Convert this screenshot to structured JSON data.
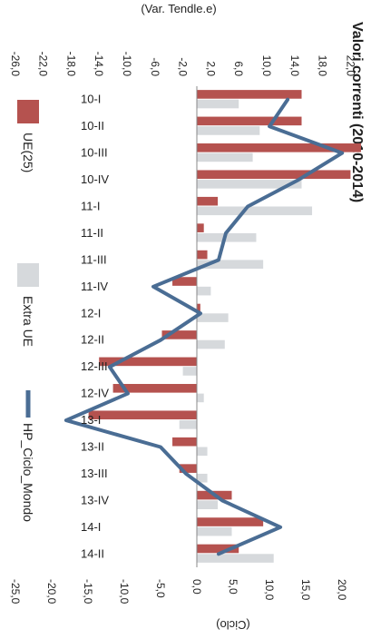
{
  "chart_data": {
    "type": "bar",
    "title": "Valori correnti (2010-2014)",
    "ylabel_left": "(Var. Tendle.e)",
    "ylabel_right": "(Ciclo)",
    "categories": [
      "10-I",
      "10-II",
      "10-III",
      "10-IV",
      "11-I",
      "11-II",
      "11-III",
      "11-IV",
      "12-I",
      "12-II",
      "12-III",
      "12-IV",
      "13-I",
      "13-II",
      "13-III",
      "13-IV",
      "14-I",
      "14-II"
    ],
    "series": [
      {
        "name": "UE(25)",
        "kind": "bar",
        "color": "#b5524f",
        "values": [
          15.0,
          15.0,
          23.5,
          22.0,
          3.0,
          1.0,
          1.5,
          -3.5,
          0.5,
          -5.0,
          -14.0,
          -12.0,
          -15.5,
          -3.5,
          -2.5,
          5.0,
          9.5,
          6.0
        ]
      },
      {
        "name": "Extra UE",
        "kind": "bar",
        "color": "#d6d9dc",
        "values": [
          6.0,
          9.0,
          8.0,
          15.0,
          16.5,
          8.5,
          9.5,
          2.0,
          4.5,
          4.0,
          -2.0,
          1.0,
          -2.5,
          1.5,
          1.5,
          3.0,
          5.0,
          11.0
        ]
      },
      {
        "name": "HP_Ciclo_Mondo",
        "kind": "line",
        "color": "#4a6d94",
        "values": [
          12.5,
          10.0,
          20.0,
          14.0,
          7.0,
          4.0,
          3.0,
          -6.0,
          0.5,
          -5.0,
          -12.0,
          -9.5,
          -18.0,
          -5.0,
          -1.5,
          3.5,
          11.5,
          3.0
        ]
      }
    ],
    "left_axis": {
      "ticks": [
        "26,0",
        "22,0",
        "18,0",
        "14,0",
        "10,0",
        "6,0",
        "2,0",
        "-2,0",
        "-6,0",
        "-10,0",
        "-14,0",
        "-18,0",
        "-22,0",
        "-26,0"
      ],
      "range": [
        -26,
        26
      ]
    },
    "right_axis": {
      "ticks": [
        "25,0",
        "20,0",
        "15,0",
        "10,0",
        "5,0",
        "0,0",
        "-5,0",
        "-10,0",
        "-15,0",
        "-20,0",
        "-25,0"
      ],
      "range": [
        -25,
        25
      ]
    },
    "legend": [
      "UE(25)",
      "Extra UE",
      "HP_Ciclo_Mondo"
    ],
    "grid": false,
    "legend_position": "bottom",
    "rotation": "rotated 90 degrees clockwise"
  }
}
